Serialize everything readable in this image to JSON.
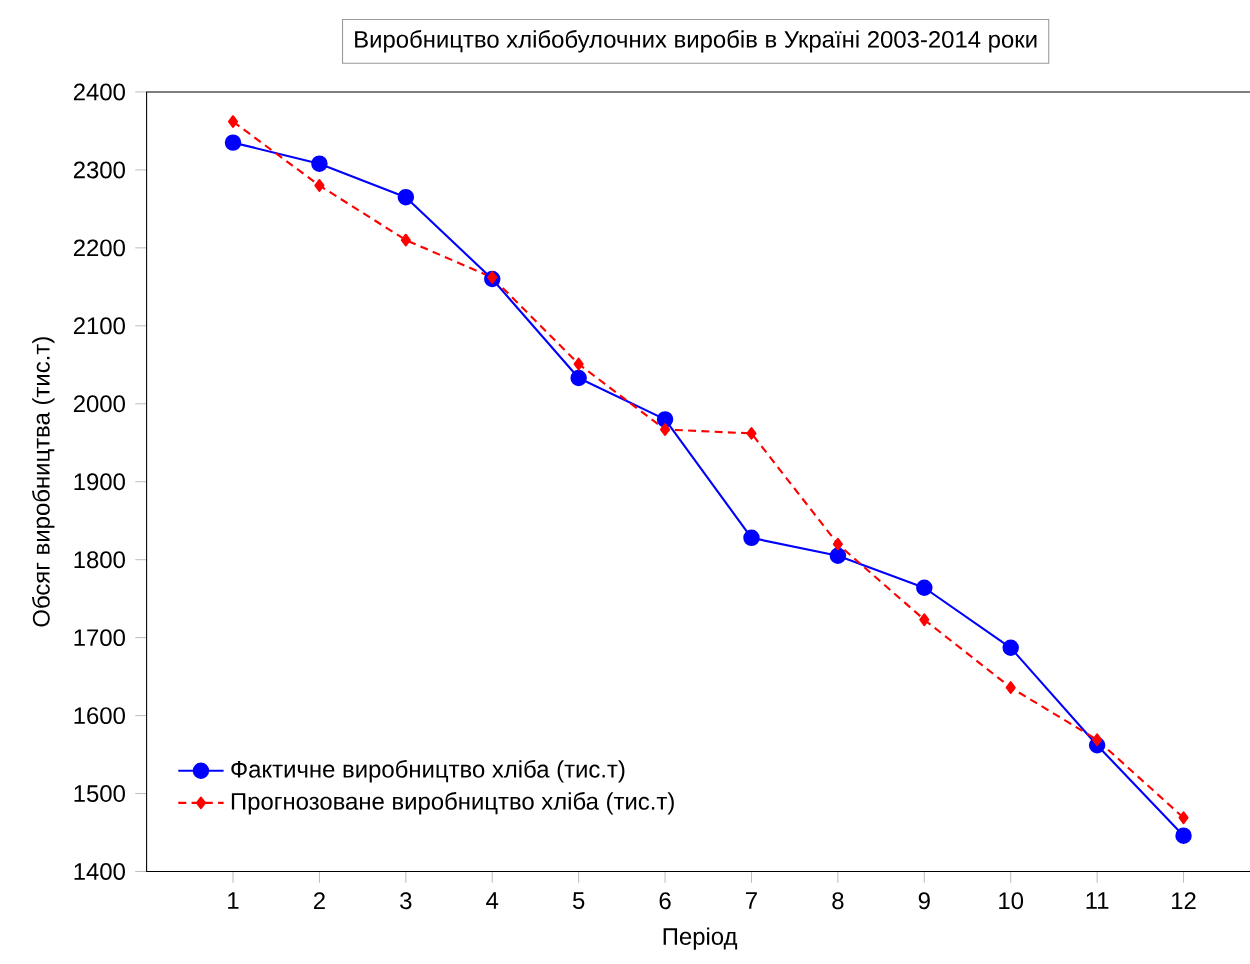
{
  "chart_data": {
    "type": "line",
    "title": "Виробництво хлібобулочних виробів в Україні 2003-2014 роки",
    "xlabel": "Період",
    "ylabel": "Обсяг виробництва (тис.т)",
    "x": [
      1,
      2,
      3,
      4,
      5,
      6,
      7,
      8,
      9,
      10,
      11,
      12
    ],
    "xlim": [
      0,
      12.8
    ],
    "xticks": [
      1,
      2,
      3,
      4,
      5,
      6,
      7,
      8,
      9,
      10,
      11,
      12
    ],
    "ylim": [
      1400,
      2400
    ],
    "yticks": [
      1400,
      1500,
      1600,
      1700,
      1800,
      1900,
      2000,
      2100,
      2200,
      2300,
      2400
    ],
    "legend": "bottom left",
    "series": [
      {
        "name": "Фактичне виробництво хліба (тис.т)",
        "color": "#0000ff",
        "marker": "circle",
        "line_style": "solid",
        "values": [
          2335,
          2308,
          2265,
          2160,
          2033,
          1980,
          1828,
          1805,
          1764,
          1687,
          1562,
          1446
        ]
      },
      {
        "name": "Прогнозоване виробництво хліба (тис.т)",
        "color": "#ff0000",
        "marker": "diamond",
        "line_style": "dashed",
        "values": [
          2362,
          2280,
          2210,
          2162,
          2051,
          1967,
          1962,
          1820,
          1723,
          1636,
          1569,
          1469
        ]
      }
    ]
  }
}
